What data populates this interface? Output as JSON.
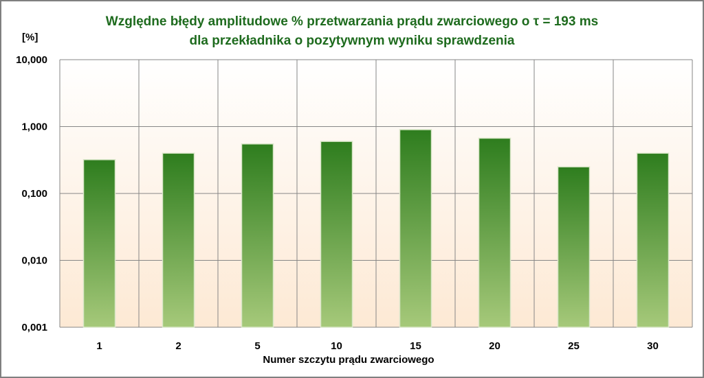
{
  "colors": {
    "bar_top": "#2e7d1e",
    "bar_bottom": "#a6c97a",
    "bar_stroke": "#d9e6c8",
    "title": "#1e6b1e",
    "grid": "#868686",
    "plot_top": "#ffffff",
    "plot_bottom": "#fde9d4"
  },
  "chart_data": {
    "type": "bar",
    "title_lines": [
      "Względne błędy amplitudowe % przetwarzania prądu zwarciowego o τ = 193 ms",
      "dla przekładnika o pozytywnym wyniku sprawdzenia"
    ],
    "xlabel": "Numer szczytu prądu zwarciowego",
    "ylabel": "[%]",
    "y_scale": "log",
    "ylim": [
      0.001,
      10
    ],
    "y_ticks": [
      10,
      1,
      0.1,
      0.01,
      0.001
    ],
    "y_tick_labels": [
      "10,000",
      "1,000",
      "0,100",
      "0,010",
      "0,001"
    ],
    "categories": [
      "1",
      "2",
      "5",
      "10",
      "15",
      "20",
      "25",
      "30"
    ],
    "values": [
      0.32,
      0.4,
      0.55,
      0.6,
      0.9,
      0.67,
      0.25,
      0.4
    ],
    "grid": true
  }
}
